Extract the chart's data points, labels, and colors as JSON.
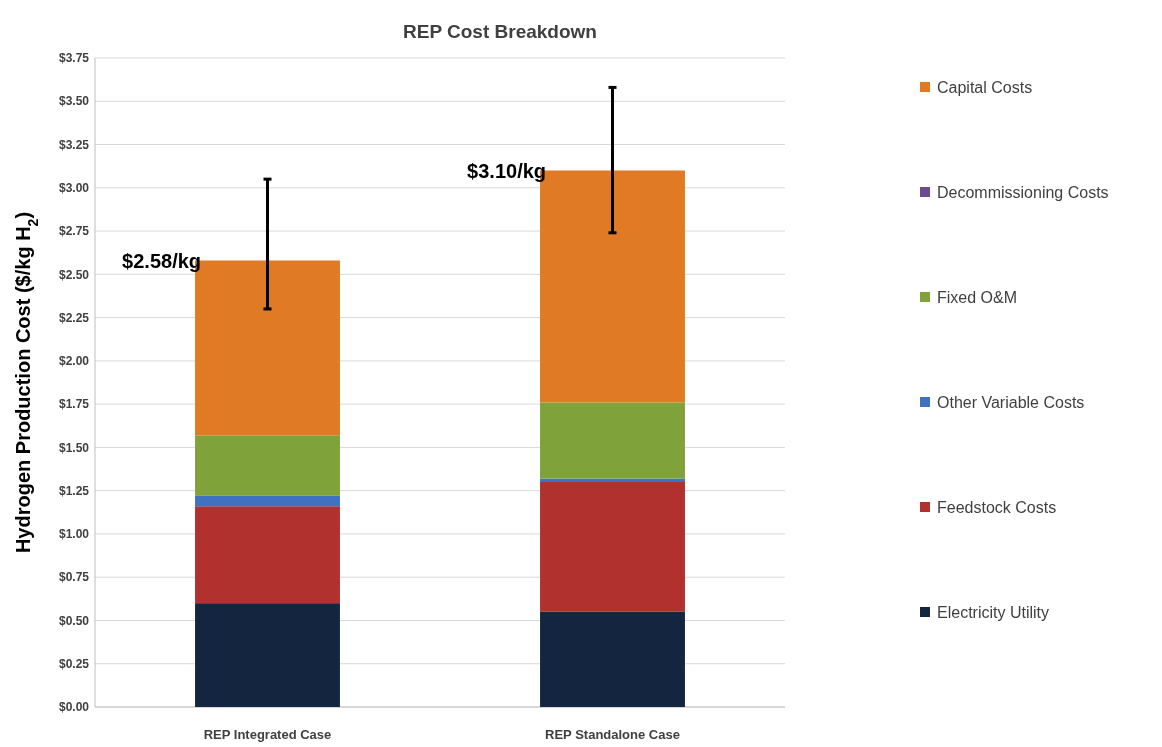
{
  "chart_data": {
    "type": "bar",
    "title": "REP Cost Breakdown",
    "ylabel": "Hydrogen Production Cost ($/kg H$_{2}$)",
    "categories": [
      "REP Integrated Case",
      "REP Standalone Case"
    ],
    "stacked": true,
    "series": [
      {
        "name": "Electricity Utility",
        "color": "#14263f",
        "values": [
          0.6,
          0.55
        ]
      },
      {
        "name": "Feedstock Costs",
        "color": "#b0312e",
        "values": [
          0.56,
          0.75
        ]
      },
      {
        "name": "Other Variable Costs",
        "color": "#3f72c0",
        "values": [
          0.06,
          0.02
        ]
      },
      {
        "name": "Fixed O&M",
        "color": "#7fa33a",
        "values": [
          0.35,
          0.44
        ]
      },
      {
        "name": "Decommissioning Costs",
        "color": "#6a4c93",
        "values": [
          null,
          null
        ]
      },
      {
        "name": "Capital Costs",
        "color": "#e07a25",
        "values": [
          1.01,
          1.34
        ],
        "errors": [
          [
            2.3,
            3.05
          ],
          [
            2.74,
            3.58
          ]
        ]
      }
    ],
    "ylim": [
      0,
      3.75
    ],
    "yticks": [
      {
        "value": 0,
        "label": "$0.00"
      },
      {
        "value": 0.25,
        "label": "$0.25"
      },
      {
        "value": 0.5,
        "label": "$0.50"
      },
      {
        "value": 0.75,
        "label": "$0.75"
      },
      {
        "value": 1,
        "label": "$1.00"
      },
      {
        "value": 1.25,
        "label": "$1.25"
      },
      {
        "value": 1.5,
        "label": "$1.50"
      },
      {
        "value": 1.75,
        "label": "$1.75"
      },
      {
        "value": 2,
        "label": "$2.00"
      },
      {
        "value": 2.25,
        "label": "$2.25"
      },
      {
        "value": 2.5,
        "label": "$2.50"
      },
      {
        "value": 2.75,
        "label": "$2.75"
      },
      {
        "value": 3,
        "label": "$3.00"
      },
      {
        "value": 3.25,
        "label": "$3.25"
      },
      {
        "value": 3.5,
        "label": "$3.50"
      },
      {
        "value": 3.75,
        "label": "$3.75"
      }
    ],
    "grid": "y",
    "legend": "right",
    "totals": [
      "$2.58/kg",
      "$3.10/kg"
    ]
  }
}
